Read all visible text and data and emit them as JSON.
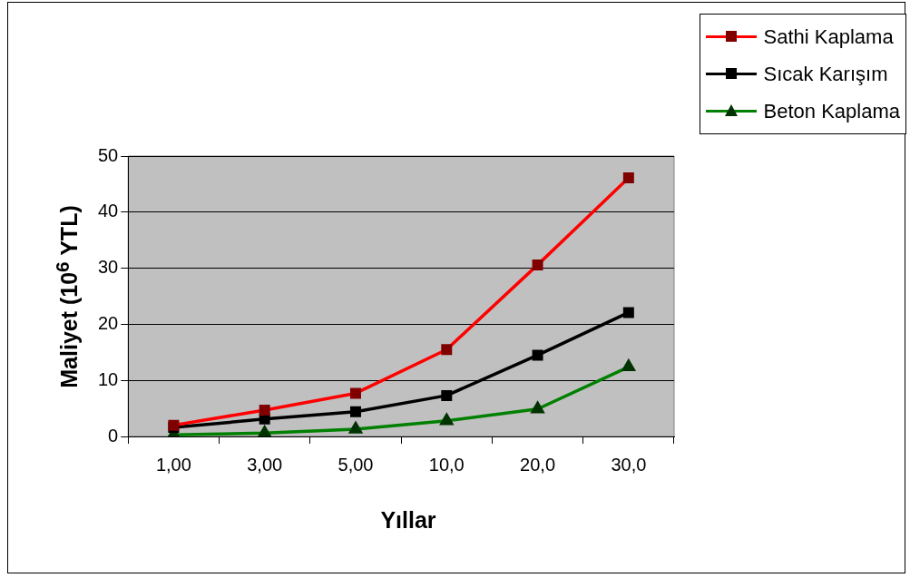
{
  "chart_data": {
    "type": "line",
    "xlabel": "Yıllar",
    "ylabel": "Maliyet (10$^{6}$ YTL)",
    "categories": [
      "1,00",
      "3,00",
      "5,00",
      "10,0",
      "20,0",
      "30,0"
    ],
    "series": [
      {
        "name": "Sathi Kaplama",
        "color": "#ff0000",
        "marker": "square",
        "values": [
          2.0,
          4.7,
          7.7,
          15.5,
          30.6,
          46.1
        ]
      },
      {
        "name": "Sıcak Karışım",
        "color": "#000000",
        "marker": "square",
        "values": [
          1.6,
          3.1,
          4.4,
          7.3,
          14.5,
          22.1
        ]
      },
      {
        "name": "Beton Kaplama",
        "color": "#008000",
        "marker": "triangle",
        "values": [
          0.3,
          0.6,
          1.3,
          2.8,
          4.9,
          12.4
        ]
      }
    ],
    "ylim": [
      0,
      50
    ],
    "yticks": [
      0,
      10,
      20,
      30,
      40,
      50
    ],
    "grid": "y",
    "legend": "top right"
  }
}
